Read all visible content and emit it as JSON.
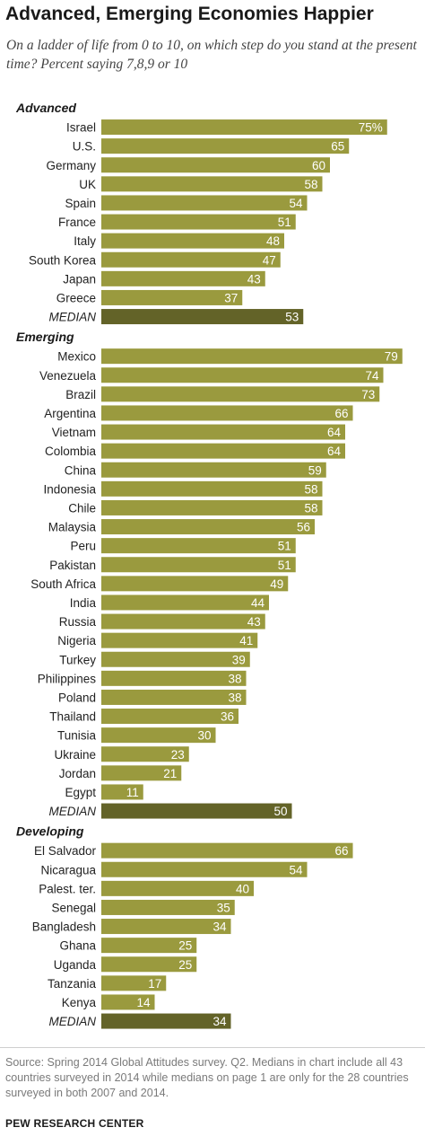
{
  "title": "Advanced, Emerging Economies Happier",
  "subtitle": "On a ladder of life from 0 to 10, on which step do you stand at the present time? Percent saying 7,8,9 or 10",
  "footnote": "Source: Spring 2014 Global Attitudes survey. Q2. Medians in chart include all 43 countries surveyed in 2014 while medians on page 1 are only for the 28 countries surveyed in both 2007 and 2014.",
  "source_label": "PEW RESEARCH CENTER",
  "colors": {
    "bar": "#9a9a3e",
    "median_bar": "#636328",
    "bar_text": "#ffffff",
    "group_label": "#1a1a1a"
  },
  "chart_data": {
    "type": "bar",
    "orientation": "horizontal",
    "value_suffix_first": "%",
    "groups": [
      {
        "name": "Advanced",
        "categories": [
          "Israel",
          "U.S.",
          "Germany",
          "UK",
          "Spain",
          "France",
          "Italy",
          "South Korea",
          "Japan",
          "Greece",
          "MEDIAN"
        ],
        "values": [
          75,
          65,
          60,
          58,
          54,
          51,
          48,
          47,
          43,
          37,
          53
        ]
      },
      {
        "name": "Emerging",
        "categories": [
          "Mexico",
          "Venezuela",
          "Brazil",
          "Argentina",
          "Vietnam",
          "Colombia",
          "China",
          "Indonesia",
          "Chile",
          "Malaysia",
          "Peru",
          "Pakistan",
          "South Africa",
          "India",
          "Russia",
          "Nigeria",
          "Turkey",
          "Philippines",
          "Poland",
          "Thailand",
          "Tunisia",
          "Ukraine",
          "Jordan",
          "Egypt",
          "MEDIAN"
        ],
        "values": [
          79,
          74,
          73,
          66,
          64,
          64,
          59,
          58,
          58,
          56,
          51,
          51,
          49,
          44,
          43,
          41,
          39,
          38,
          38,
          36,
          30,
          23,
          21,
          11,
          50
        ]
      },
      {
        "name": "Developing",
        "categories": [
          "El Salvador",
          "Nicaragua",
          "Palest. ter.",
          "Senegal",
          "Bangladesh",
          "Ghana",
          "Uganda",
          "Tanzania",
          "Kenya",
          "MEDIAN"
        ],
        "values": [
          66,
          54,
          40,
          35,
          34,
          25,
          25,
          17,
          14,
          34
        ]
      }
    ],
    "median_label": "MEDIAN"
  }
}
